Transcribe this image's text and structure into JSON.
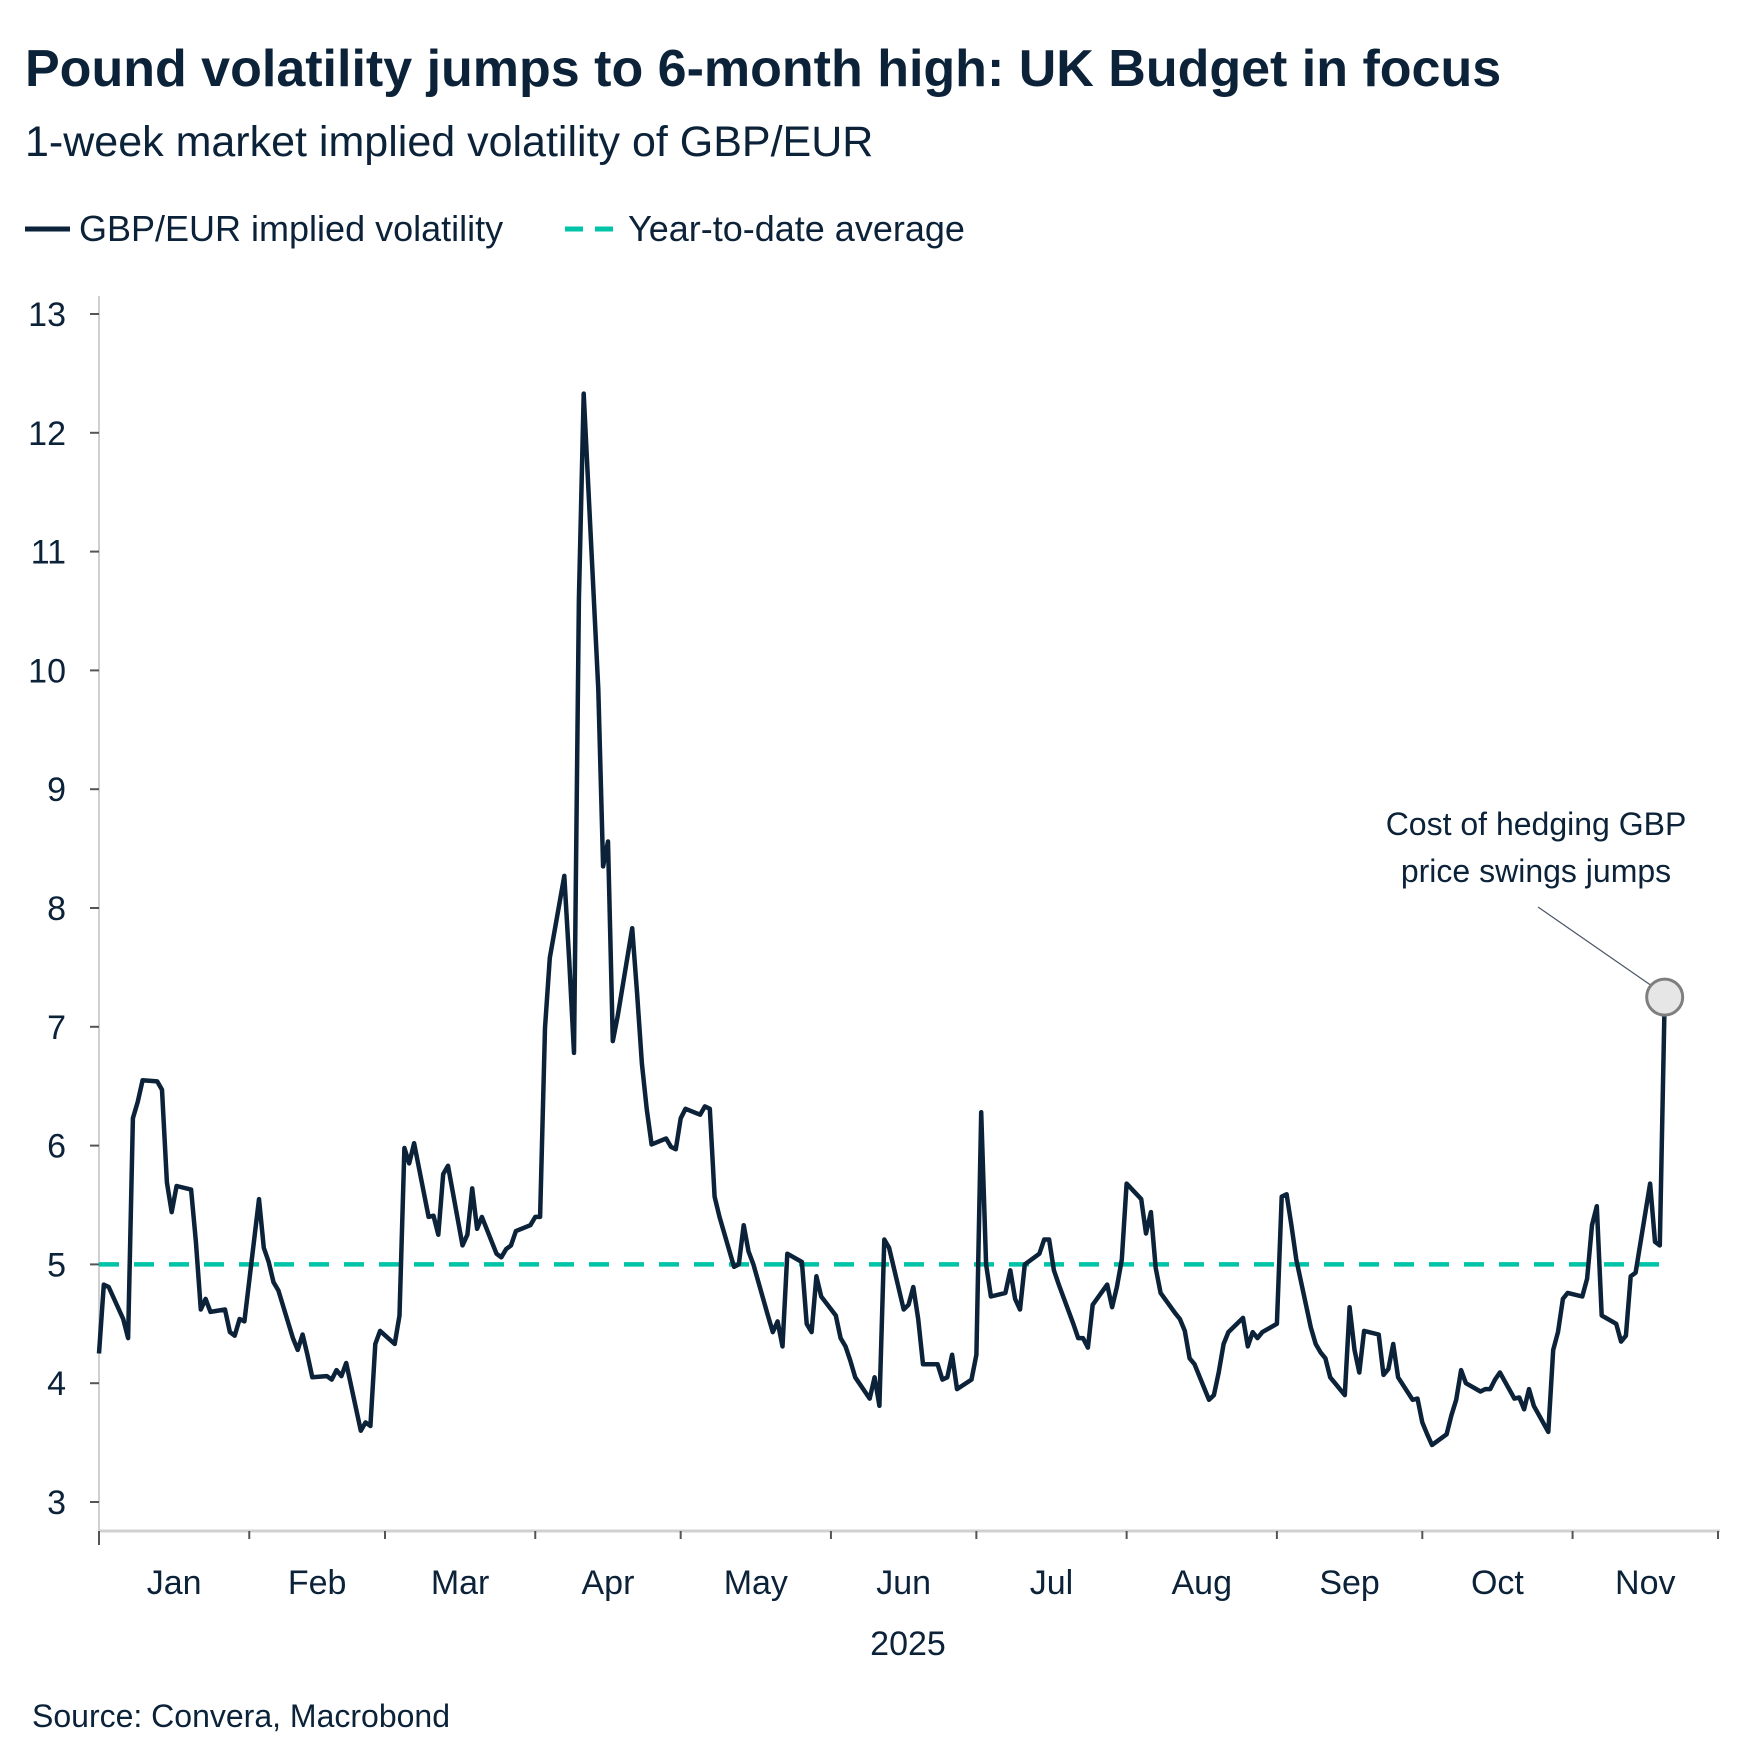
{
  "chart_data": {
    "type": "line",
    "title": "Pound volatility jumps to 6-month high: UK Budget in focus",
    "subtitle": "1-week market implied volatility of GBP/EUR",
    "xlabel": "2025",
    "ylabel": "",
    "ylim": [
      3,
      13
    ],
    "yticks": [
      "3",
      "4",
      "5",
      "6",
      "7",
      "8",
      "9",
      "10",
      "11",
      "12",
      "13"
    ],
    "xlim": [
      "2025-01-01",
      "2025-12-01"
    ],
    "xticks": [
      "Jan",
      "Feb",
      "Mar",
      "Apr",
      "May",
      "Jun",
      "Jul",
      "Aug",
      "Sep",
      "Oct",
      "Nov"
    ],
    "grid": false,
    "legend_position": "top-left",
    "colors": {
      "series": "#0b2239",
      "average": "#00c4a7",
      "marker_fill": "#e6e6e6",
      "marker_stroke": "#7f7f7f",
      "axis": "#d0d0d0"
    },
    "series": [
      {
        "name": "GBP/EUR implied volatility",
        "style": "solid",
        "x": [
          "2025-01-01",
          "2025-01-02",
          "2025-01-03",
          "2025-01-06",
          "2025-01-07",
          "2025-01-08",
          "2025-01-09",
          "2025-01-10",
          "2025-01-13",
          "2025-01-14",
          "2025-01-15",
          "2025-01-16",
          "2025-01-17",
          "2025-01-20",
          "2025-01-21",
          "2025-01-22",
          "2025-01-23",
          "2025-01-24",
          "2025-01-27",
          "2025-01-28",
          "2025-01-29",
          "2025-01-30",
          "2025-01-31",
          "2025-02-03",
          "2025-02-04",
          "2025-02-05",
          "2025-02-06",
          "2025-02-07",
          "2025-02-10",
          "2025-02-11",
          "2025-02-12",
          "2025-02-13",
          "2025-02-14",
          "2025-02-17",
          "2025-02-18",
          "2025-02-19",
          "2025-02-20",
          "2025-02-21",
          "2025-02-24",
          "2025-02-25",
          "2025-02-26",
          "2025-02-27",
          "2025-02-28",
          "2025-03-03",
          "2025-03-04",
          "2025-03-05",
          "2025-03-06",
          "2025-03-07",
          "2025-03-10",
          "2025-03-11",
          "2025-03-12",
          "2025-03-13",
          "2025-03-14",
          "2025-03-17",
          "2025-03-18",
          "2025-03-19",
          "2025-03-20",
          "2025-03-21",
          "2025-03-24",
          "2025-03-25",
          "2025-03-26",
          "2025-03-27",
          "2025-03-28",
          "2025-03-31",
          "2025-04-01",
          "2025-04-02",
          "2025-04-03",
          "2025-04-04",
          "2025-04-07",
          "2025-04-08",
          "2025-04-09",
          "2025-04-10",
          "2025-04-11",
          "2025-04-14",
          "2025-04-15",
          "2025-04-16",
          "2025-04-17",
          "2025-04-18",
          "2025-04-21",
          "2025-04-22",
          "2025-04-23",
          "2025-04-24",
          "2025-04-25",
          "2025-04-28",
          "2025-04-29",
          "2025-04-30",
          "2025-05-01",
          "2025-05-02",
          "2025-05-05",
          "2025-05-06",
          "2025-05-07",
          "2025-05-08",
          "2025-05-09",
          "2025-05-12",
          "2025-05-13",
          "2025-05-14",
          "2025-05-15",
          "2025-05-16",
          "2025-05-19",
          "2025-05-20",
          "2025-05-21",
          "2025-05-22",
          "2025-05-23",
          "2025-05-26",
          "2025-05-27",
          "2025-05-28",
          "2025-05-29",
          "2025-05-30",
          "2025-06-02",
          "2025-06-03",
          "2025-06-04",
          "2025-06-05",
          "2025-06-06",
          "2025-06-09",
          "2025-06-10",
          "2025-06-11",
          "2025-06-12",
          "2025-06-13",
          "2025-06-16",
          "2025-06-17",
          "2025-06-18",
          "2025-06-19",
          "2025-06-20",
          "2025-06-23",
          "2025-06-24",
          "2025-06-25",
          "2025-06-26",
          "2025-06-27",
          "2025-06-30",
          "2025-07-01",
          "2025-07-02",
          "2025-07-03",
          "2025-07-04",
          "2025-07-07",
          "2025-07-08",
          "2025-07-09",
          "2025-07-10",
          "2025-07-11",
          "2025-07-14",
          "2025-07-15",
          "2025-07-16",
          "2025-07-17",
          "2025-07-18",
          "2025-07-21",
          "2025-07-22",
          "2025-07-23",
          "2025-07-24",
          "2025-07-25",
          "2025-07-28",
          "2025-07-29",
          "2025-07-30",
          "2025-07-31",
          "2025-08-01",
          "2025-08-04",
          "2025-08-05",
          "2025-08-06",
          "2025-08-07",
          "2025-08-08",
          "2025-08-11",
          "2025-08-12",
          "2025-08-13",
          "2025-08-14",
          "2025-08-15",
          "2025-08-18",
          "2025-08-19",
          "2025-08-20",
          "2025-08-21",
          "2025-08-22",
          "2025-08-25",
          "2025-08-26",
          "2025-08-27",
          "2025-08-28",
          "2025-08-29",
          "2025-09-01",
          "2025-09-02",
          "2025-09-03",
          "2025-09-04",
          "2025-09-05",
          "2025-09-08",
          "2025-09-09",
          "2025-09-10",
          "2025-09-11",
          "2025-09-12",
          "2025-09-15",
          "2025-09-16",
          "2025-09-17",
          "2025-09-18",
          "2025-09-19",
          "2025-09-22",
          "2025-09-23",
          "2025-09-24",
          "2025-09-25",
          "2025-09-26",
          "2025-09-29",
          "2025-09-30",
          "2025-10-01",
          "2025-10-02",
          "2025-10-03",
          "2025-10-06",
          "2025-10-07",
          "2025-10-08",
          "2025-10-09",
          "2025-10-10",
          "2025-10-13",
          "2025-10-14",
          "2025-10-15",
          "2025-10-16",
          "2025-10-17",
          "2025-10-20",
          "2025-10-21",
          "2025-10-22",
          "2025-10-23",
          "2025-10-24",
          "2025-10-27",
          "2025-10-28",
          "2025-10-29",
          "2025-10-30",
          "2025-10-31",
          "2025-11-03",
          "2025-11-04",
          "2025-11-05",
          "2025-11-06",
          "2025-11-07",
          "2025-11-10",
          "2025-11-11",
          "2025-11-12",
          "2025-11-13",
          "2025-11-14",
          "2025-11-17",
          "2025-11-18",
          "2025-11-19",
          "2025-11-20"
        ],
        "values": [
          4.25,
          4.83,
          4.81,
          4.54,
          4.38,
          6.23,
          6.37,
          6.55,
          6.54,
          6.47,
          5.69,
          5.44,
          5.66,
          5.63,
          5.19,
          4.62,
          4.71,
          4.6,
          4.62,
          4.43,
          4.4,
          4.54,
          4.52,
          5.55,
          5.14,
          5.02,
          4.85,
          4.78,
          4.38,
          4.28,
          4.41,
          4.24,
          4.05,
          4.06,
          4.03,
          4.11,
          4.06,
          4.17,
          3.6,
          3.67,
          3.64,
          4.33,
          4.44,
          4.33,
          4.57,
          5.98,
          5.85,
          6.02,
          5.4,
          5.41,
          5.25,
          5.76,
          5.83,
          5.16,
          5.25,
          5.64,
          5.3,
          5.4,
          5.09,
          5.06,
          5.13,
          5.16,
          5.28,
          5.33,
          5.4,
          5.4,
          6.99,
          7.58,
          8.27,
          7.56,
          6.78,
          10.6,
          12.33,
          9.84,
          8.35,
          8.56,
          6.88,
          7.09,
          7.83,
          7.28,
          6.69,
          6.31,
          6.01,
          6.06,
          5.99,
          5.97,
          6.23,
          6.31,
          6.26,
          6.33,
          6.31,
          5.57,
          5.4,
          4.98,
          5.0,
          5.33,
          5.11,
          5.0,
          4.57,
          4.43,
          4.52,
          4.31,
          5.09,
          5.02,
          4.5,
          4.43,
          4.9,
          4.73,
          4.57,
          4.38,
          4.31,
          4.19,
          4.05,
          3.87,
          4.05,
          3.81,
          5.21,
          5.14,
          4.62,
          4.66,
          4.81,
          4.54,
          4.16,
          4.16,
          4.03,
          4.05,
          4.24,
          3.95,
          4.03,
          4.24,
          6.28,
          5.0,
          4.73,
          4.76,
          4.95,
          4.71,
          4.62,
          5.0,
          5.09,
          5.21,
          5.21,
          4.95,
          4.83,
          4.5,
          4.38,
          4.38,
          4.3,
          4.66,
          4.83,
          4.64,
          4.81,
          5.04,
          5.68,
          5.55,
          5.26,
          5.44,
          4.97,
          4.76,
          4.59,
          4.54,
          4.44,
          4.21,
          4.16,
          3.86,
          3.9,
          4.09,
          4.33,
          4.43,
          4.55,
          4.31,
          4.43,
          4.38,
          4.43,
          4.5,
          5.57,
          5.59,
          5.33,
          5.04,
          4.47,
          4.33,
          4.26,
          4.21,
          4.05,
          3.9,
          4.64,
          4.28,
          4.09,
          4.44,
          4.41,
          4.07,
          4.12,
          4.33,
          4.05,
          3.86,
          3.87,
          3.67,
          3.57,
          3.48,
          3.57,
          3.73,
          3.86,
          4.11,
          4.0,
          3.93,
          3.95,
          3.95,
          4.03,
          4.09,
          3.87,
          3.88,
          3.78,
          3.95,
          3.81,
          3.59,
          4.28,
          4.43,
          4.71,
          4.76,
          4.73,
          4.88,
          5.33,
          5.49,
          4.57,
          4.5,
          4.35,
          4.4,
          4.9,
          4.93,
          5.68,
          5.19,
          5.16,
          7.25
        ]
      },
      {
        "name": "Year-to-date average",
        "style": "dashed",
        "x": [
          "2025-01-01",
          "2025-11-20"
        ],
        "values": [
          5.0,
          5.0
        ]
      }
    ],
    "annotations": [
      {
        "line1": "Cost of hedging GBP",
        "line2": "price swings jumps",
        "target_date": "2025-11-20",
        "target_value": 7.25
      }
    ],
    "source": "Source: Convera, Macrobond"
  }
}
